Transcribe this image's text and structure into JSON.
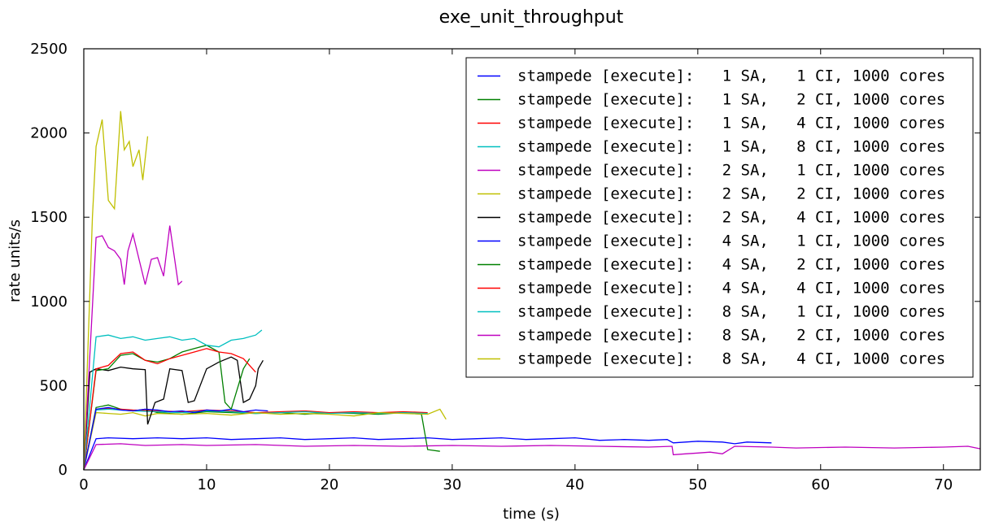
{
  "chart_data": {
    "type": "line",
    "title": "exe_unit_throughput",
    "xlabel": "time (s)",
    "ylabel": "rate units/s",
    "xlim": [
      0,
      73
    ],
    "ylim": [
      0,
      2500
    ],
    "x_ticks": [
      0,
      10,
      20,
      30,
      40,
      50,
      60,
      70
    ],
    "y_ticks": [
      0,
      500,
      1000,
      1500,
      2000,
      2500
    ],
    "legend_position": "top-right",
    "grid": false,
    "series": [
      {
        "name": "stampede [execute]:   1 SA,   1 CI, 1000 cores",
        "color": "#0000ff",
        "x": [
          0,
          1,
          2,
          4,
          6,
          8,
          10,
          12,
          14,
          16,
          18,
          20,
          22,
          24,
          26,
          28,
          30,
          32,
          34,
          36,
          38,
          40,
          42,
          44,
          46,
          47.5,
          48,
          50,
          52,
          53,
          54,
          56
        ],
        "y": [
          0,
          185,
          190,
          185,
          190,
          185,
          190,
          180,
          185,
          190,
          180,
          185,
          190,
          180,
          185,
          190,
          180,
          185,
          190,
          180,
          185,
          190,
          175,
          180,
          175,
          180,
          160,
          170,
          165,
          155,
          165,
          160
        ]
      },
      {
        "name": "stampede [execute]:   1 SA,   2 CI, 1000 cores",
        "color": "#008000",
        "x": [
          0,
          1,
          2,
          3,
          4,
          5,
          6,
          8,
          10,
          12,
          14,
          16,
          18,
          20,
          22,
          24,
          26,
          27.5,
          28,
          29
        ],
        "y": [
          0,
          370,
          385,
          360,
          350,
          360,
          340,
          330,
          345,
          340,
          335,
          340,
          330,
          340,
          335,
          330,
          340,
          330,
          120,
          110
        ]
      },
      {
        "name": "stampede [execute]:   1 SA,   4 CI, 1000 cores",
        "color": "#ff0000",
        "x": [
          0,
          1,
          2,
          4,
          6,
          8,
          10,
          12,
          14,
          16,
          18,
          20,
          22,
          24,
          26,
          28
        ],
        "y": [
          0,
          360,
          365,
          355,
          350,
          345,
          355,
          350,
          340,
          345,
          350,
          340,
          345,
          340,
          345,
          340
        ]
      },
      {
        "name": "stampede [execute]:   1 SA,   8 CI, 1000 cores",
        "color": "#00bfbf",
        "x": [
          0,
          1,
          2,
          4,
          6,
          8,
          10,
          12,
          14,
          16,
          18,
          20,
          22,
          24,
          26,
          28
        ],
        "y": [
          0,
          355,
          360,
          350,
          345,
          340,
          350,
          345,
          335,
          340,
          345,
          335,
          340,
          335,
          340,
          335
        ]
      },
      {
        "name": "stampede [execute]:   2 SA,   1 CI, 1000 cores",
        "color": "#bf00bf",
        "x": [
          0,
          1,
          3,
          5,
          8,
          10,
          14,
          18,
          22,
          26,
          30,
          34,
          38,
          42,
          46,
          47.9,
          48,
          49,
          50,
          51,
          52,
          53,
          56,
          58,
          62,
          66,
          70,
          72,
          73
        ],
        "y": [
          0,
          150,
          155,
          145,
          150,
          145,
          150,
          140,
          145,
          140,
          145,
          140,
          145,
          140,
          135,
          140,
          90,
          95,
          100,
          105,
          95,
          140,
          135,
          130,
          135,
          130,
          135,
          140,
          125
        ]
      },
      {
        "name": "stampede [execute]:   2 SA,   2 CI, 1000 cores",
        "color": "#bfbf00",
        "x": [
          0,
          1,
          2,
          3,
          4,
          5,
          6,
          8,
          10,
          12,
          14,
          16,
          18,
          20,
          22,
          24,
          26,
          28,
          29,
          29.5
        ],
        "y": [
          0,
          340,
          335,
          330,
          340,
          320,
          335,
          330,
          335,
          325,
          340,
          330,
          335,
          330,
          320,
          340,
          335,
          330,
          360,
          300
        ]
      },
      {
        "name": "stampede [execute]:   2 SA,   4 CI, 1000 cores",
        "color": "#000000",
        "x": [
          0,
          0.5,
          1,
          2,
          3,
          4,
          5,
          5.2,
          5.8,
          6.5,
          7,
          8,
          8.5,
          9,
          10,
          11,
          12,
          12.5,
          13,
          13.5,
          14,
          14.2,
          14.6
        ],
        "y": [
          0,
          580,
          600,
          590,
          610,
          600,
          595,
          270,
          400,
          420,
          600,
          590,
          400,
          410,
          600,
          640,
          670,
          650,
          400,
          420,
          500,
          600,
          650
        ]
      },
      {
        "name": "stampede [execute]:   4 SA,   1 CI, 1000 cores",
        "color": "#0000ff",
        "x": [
          0,
          1,
          2,
          3,
          4,
          5,
          6,
          7,
          8,
          9,
          10,
          11,
          12,
          13,
          14,
          15
        ],
        "y": [
          0,
          360,
          370,
          355,
          350,
          360,
          355,
          345,
          350,
          340,
          355,
          350,
          360,
          345,
          355,
          350
        ]
      },
      {
        "name": "stampede [execute]:   4 SA,   2 CI, 1000 cores",
        "color": "#008000",
        "x": [
          0,
          1,
          2,
          3,
          4,
          5,
          6,
          7,
          8,
          9,
          10,
          11,
          11.5,
          12,
          13,
          13.5
        ],
        "y": [
          0,
          590,
          600,
          680,
          690,
          650,
          640,
          660,
          700,
          720,
          740,
          700,
          400,
          360,
          600,
          660
        ]
      },
      {
        "name": "stampede [execute]:   4 SA,   4 CI, 1000 cores",
        "color": "#ff0000",
        "x": [
          0,
          1,
          2,
          3,
          4,
          5,
          6,
          7,
          8,
          9,
          10,
          11,
          12,
          13,
          14
        ],
        "y": [
          0,
          600,
          620,
          690,
          700,
          650,
          630,
          660,
          680,
          700,
          720,
          700,
          690,
          660,
          580
        ]
      },
      {
        "name": "stampede [execute]:   8 SA,   1 CI, 1000 cores",
        "color": "#00bfbf",
        "x": [
          0,
          1,
          2,
          3,
          4,
          5,
          6,
          7,
          8,
          9,
          10,
          11,
          12,
          13,
          14,
          14.5
        ],
        "y": [
          0,
          790,
          800,
          780,
          790,
          770,
          780,
          790,
          770,
          780,
          740,
          730,
          770,
          780,
          800,
          830
        ]
      },
      {
        "name": "stampede [execute]:   8 SA,   2 CI, 1000 cores",
        "color": "#bf00bf",
        "x": [
          0,
          1,
          1.5,
          2,
          2.5,
          3,
          3.3,
          3.6,
          4,
          4.5,
          5,
          5.5,
          6,
          6.5,
          7,
          7.3,
          7.7,
          8
        ],
        "y": [
          0,
          1380,
          1390,
          1320,
          1300,
          1250,
          1100,
          1300,
          1400,
          1250,
          1100,
          1250,
          1260,
          1150,
          1450,
          1300,
          1100,
          1120
        ]
      },
      {
        "name": "stampede [execute]:   8 SA,   4 CI, 1000 cores",
        "color": "#bfbf00",
        "x": [
          0,
          0.7,
          1,
          1.5,
          2,
          2.5,
          3,
          3.3,
          3.7,
          4,
          4.5,
          4.8,
          5.2
        ],
        "y": [
          0,
          1500,
          1920,
          2080,
          1600,
          1550,
          2130,
          1900,
          1950,
          1800,
          1900,
          1720,
          1980
        ]
      }
    ]
  }
}
